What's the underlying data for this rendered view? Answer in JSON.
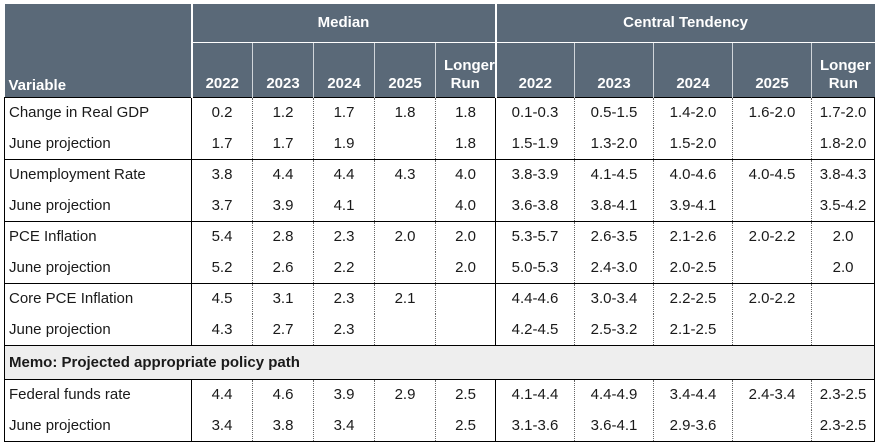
{
  "header": {
    "variable_label": "Variable",
    "median_label": "Median",
    "central_tendency_label": "Central Tendency",
    "median_years": [
      "2022",
      "2023",
      "2024",
      "2025",
      "Longer Run"
    ],
    "ct_years": [
      "2022",
      "2023",
      "2024",
      "2025",
      "Longer Run"
    ]
  },
  "groups": [
    {
      "rows": [
        {
          "label": "Change in Real GDP",
          "median": [
            "0.2",
            "1.2",
            "1.7",
            "1.8",
            "1.8"
          ],
          "ct": [
            "0.1-0.3",
            "0.5-1.5",
            "1.4-2.0",
            "1.6-2.0",
            "1.7-2.0"
          ]
        },
        {
          "label": "June projection",
          "median": [
            "1.7",
            "1.7",
            "1.9",
            "",
            "1.8"
          ],
          "ct": [
            "1.5-1.9",
            "1.3-2.0",
            "1.5-2.0",
            "",
            "1.8-2.0"
          ]
        }
      ]
    },
    {
      "rows": [
        {
          "label": "Unemployment Rate",
          "median": [
            "3.8",
            "4.4",
            "4.4",
            "4.3",
            "4.0"
          ],
          "ct": [
            "3.8-3.9",
            "4.1-4.5",
            "4.0-4.6",
            "4.0-4.5",
            "3.8-4.3"
          ]
        },
        {
          "label": "June projection",
          "median": [
            "3.7",
            "3.9",
            "4.1",
            "",
            "4.0"
          ],
          "ct": [
            "3.6-3.8",
            "3.8-4.1",
            "3.9-4.1",
            "",
            "3.5-4.2"
          ]
        }
      ]
    },
    {
      "rows": [
        {
          "label": "PCE Inflation",
          "median": [
            "5.4",
            "2.8",
            "2.3",
            "2.0",
            "2.0"
          ],
          "ct": [
            "5.3-5.7",
            "2.6-3.5",
            "2.1-2.6",
            "2.0-2.2",
            "2.0"
          ]
        },
        {
          "label": "June projection",
          "median": [
            "5.2",
            "2.6",
            "2.2",
            "",
            "2.0"
          ],
          "ct": [
            "5.0-5.3",
            "2.4-3.0",
            "2.0-2.5",
            "",
            "2.0"
          ]
        }
      ]
    },
    {
      "rows": [
        {
          "label": "Core PCE Inflation",
          "median": [
            "4.5",
            "3.1",
            "2.3",
            "2.1",
            ""
          ],
          "ct": [
            "4.4-4.6",
            "3.0-3.4",
            "2.2-2.5",
            "2.0-2.2",
            ""
          ]
        },
        {
          "label": "June projection",
          "median": [
            "4.3",
            "2.7",
            "2.3",
            "",
            ""
          ],
          "ct": [
            "4.2-4.5",
            "2.5-3.2",
            "2.1-2.5",
            "",
            ""
          ]
        }
      ]
    },
    {
      "memo": "Memo: Projected appropriate policy path"
    },
    {
      "rows": [
        {
          "label": "Federal funds rate",
          "median": [
            "4.4",
            "4.6",
            "3.9",
            "2.9",
            "2.5"
          ],
          "ct": [
            "4.1-4.4",
            "4.4-4.9",
            "3.4-4.4",
            "2.4-3.4",
            "2.3-2.5"
          ]
        },
        {
          "label": "June projection",
          "median": [
            "3.4",
            "3.8",
            "3.4",
            "",
            "2.5"
          ],
          "ct": [
            "3.1-3.6",
            "3.6-4.1",
            "2.9-3.6",
            "",
            "2.3-2.5"
          ]
        }
      ]
    }
  ]
}
